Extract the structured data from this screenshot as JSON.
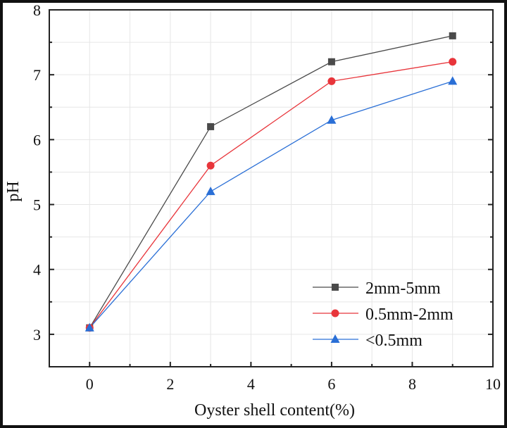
{
  "chart_data": {
    "type": "line",
    "xlabel": "Oyster shell content(%)",
    "ylabel": "pH",
    "xlim": [
      -1,
      10
    ],
    "ylim": [
      2.5,
      8
    ],
    "xticks": [
      "0",
      "2",
      "4",
      "6",
      "8",
      "10"
    ],
    "yticks": [
      "3",
      "4",
      "5",
      "6",
      "7",
      "8"
    ],
    "grid": true,
    "legend_position": "bottom-right",
    "x": [
      0,
      3,
      6,
      9
    ],
    "series": [
      {
        "name": "2mm-5mm",
        "values": [
          3.1,
          6.2,
          7.2,
          7.6
        ],
        "color": "#4a4a4a",
        "marker": "square"
      },
      {
        "name": "0.5mm-2mm",
        "values": [
          3.1,
          5.6,
          6.9,
          7.2
        ],
        "color": "#e8353b",
        "marker": "circle"
      },
      {
        "name": "<0.5mm",
        "values": [
          3.1,
          5.2,
          6.3,
          6.9
        ],
        "color": "#2a6fd6",
        "marker": "triangle"
      }
    ]
  }
}
